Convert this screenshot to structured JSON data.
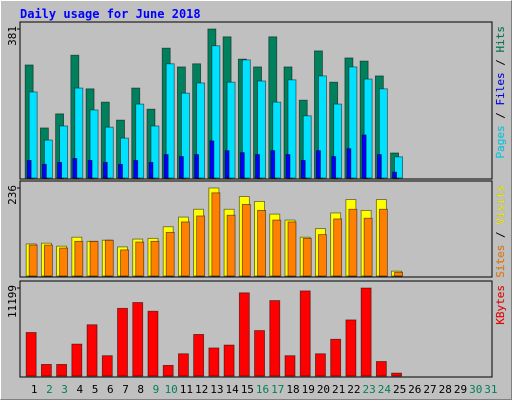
{
  "chart_data": {
    "type": "bar",
    "title": "Daily usage for June 2018",
    "categories": [
      "1",
      "2",
      "3",
      "4",
      "5",
      "6",
      "7",
      "8",
      "9",
      "10",
      "11",
      "12",
      "13",
      "14",
      "15",
      "16",
      "17",
      "18",
      "19",
      "20",
      "21",
      "22",
      "23",
      "24",
      "25",
      "26",
      "27",
      "28",
      "29",
      "30",
      "31"
    ],
    "category_colors": [
      "#000000",
      "#00805c",
      "#00805c",
      "#000000",
      "#000000",
      "#000000",
      "#000000",
      "#000000",
      "#00805c",
      "#00805c",
      "#000000",
      "#000000",
      "#000000",
      "#000000",
      "#000000",
      "#00805c",
      "#00805c",
      "#000000",
      "#000000",
      "#000000",
      "#000000",
      "#000000",
      "#00805c",
      "#00805c",
      "#000000",
      "#000000",
      "#000000",
      "#000000",
      "#000000",
      "#00805c",
      "#00805c"
    ],
    "legend_separator": " / ",
    "panels": [
      {
        "ylim": [
          0,
          381
        ],
        "yticks": [
          381
        ],
        "series": [
          {
            "name": "Hits",
            "color": "#00805c",
            "values": [
              289,
              128,
              164,
              314,
              228,
              194,
              148,
              230,
              176,
              332,
              284,
              292,
              381,
              361,
              304,
              284,
              361,
              284,
              199,
              325,
              245,
              307,
              299,
              261,
              64,
              null,
              null,
              null,
              null,
              null,
              null
            ]
          },
          {
            "name": "Pages",
            "color": "#00e0ff",
            "values": [
              220,
              97,
              133,
              230,
              174,
              130,
              102,
              189,
              133,
              292,
              217,
              243,
              338,
              245,
              302,
              248,
              194,
              251,
              159,
              261,
              189,
              284,
              253,
              228,
              54,
              null,
              null,
              null,
              null,
              null,
              null
            ]
          },
          {
            "name": "Files",
            "color": "#0000ff",
            "values": [
              45,
              35,
              40,
              50,
              45,
              40,
              35,
              45,
              40,
              60,
              55,
              60,
              95,
              70,
              65,
              60,
              70,
              60,
              45,
              70,
              55,
              75,
              110,
              60,
              15,
              null,
              null,
              null,
              null,
              null,
              null
            ]
          }
        ],
        "legend_order": [
          1,
          2,
          0
        ]
      },
      {
        "ylim": [
          0,
          236
        ],
        "yticks": [
          236
        ],
        "series": [
          {
            "name": "Visits",
            "color": "#ffff00",
            "values": [
              86,
              88,
              80,
              104,
              93,
              96,
              78,
              99,
              101,
              132,
              158,
              179,
              236,
              179,
              213,
              200,
              166,
              150,
              104,
              127,
              169,
              205,
              176,
              205,
              13,
              null,
              null,
              null,
              null,
              null,
              null
            ]
          },
          {
            "name": "Sites",
            "color": "#ff8000",
            "values": [
              83,
              83,
              75,
              93,
              93,
              96,
              70,
              91,
              93,
              117,
              145,
              161,
              223,
              163,
              192,
              176,
              150,
              145,
              101,
              111,
              153,
              179,
              155,
              179,
              10,
              null,
              null,
              null,
              null,
              null,
              null
            ]
          }
        ],
        "legend_order": [
          1,
          0
        ]
      },
      {
        "ylim": [
          0,
          11199
        ],
        "yticks": [
          11199
        ],
        "series": [
          {
            "name": "KBytes",
            "color": "#ff0000",
            "values": [
              5538,
              1477,
              1477,
              4061,
              6522,
              2584,
              8614,
              9353,
              8245,
              1354,
              2830,
              5292,
              3569,
              3938,
              10584,
              5784,
              9599,
              2584,
              10830,
              2830,
              4676,
              7138,
              11199,
              1846,
              369,
              null,
              null,
              null,
              null,
              null,
              null
            ]
          }
        ],
        "legend_order": [
          0
        ]
      }
    ]
  }
}
